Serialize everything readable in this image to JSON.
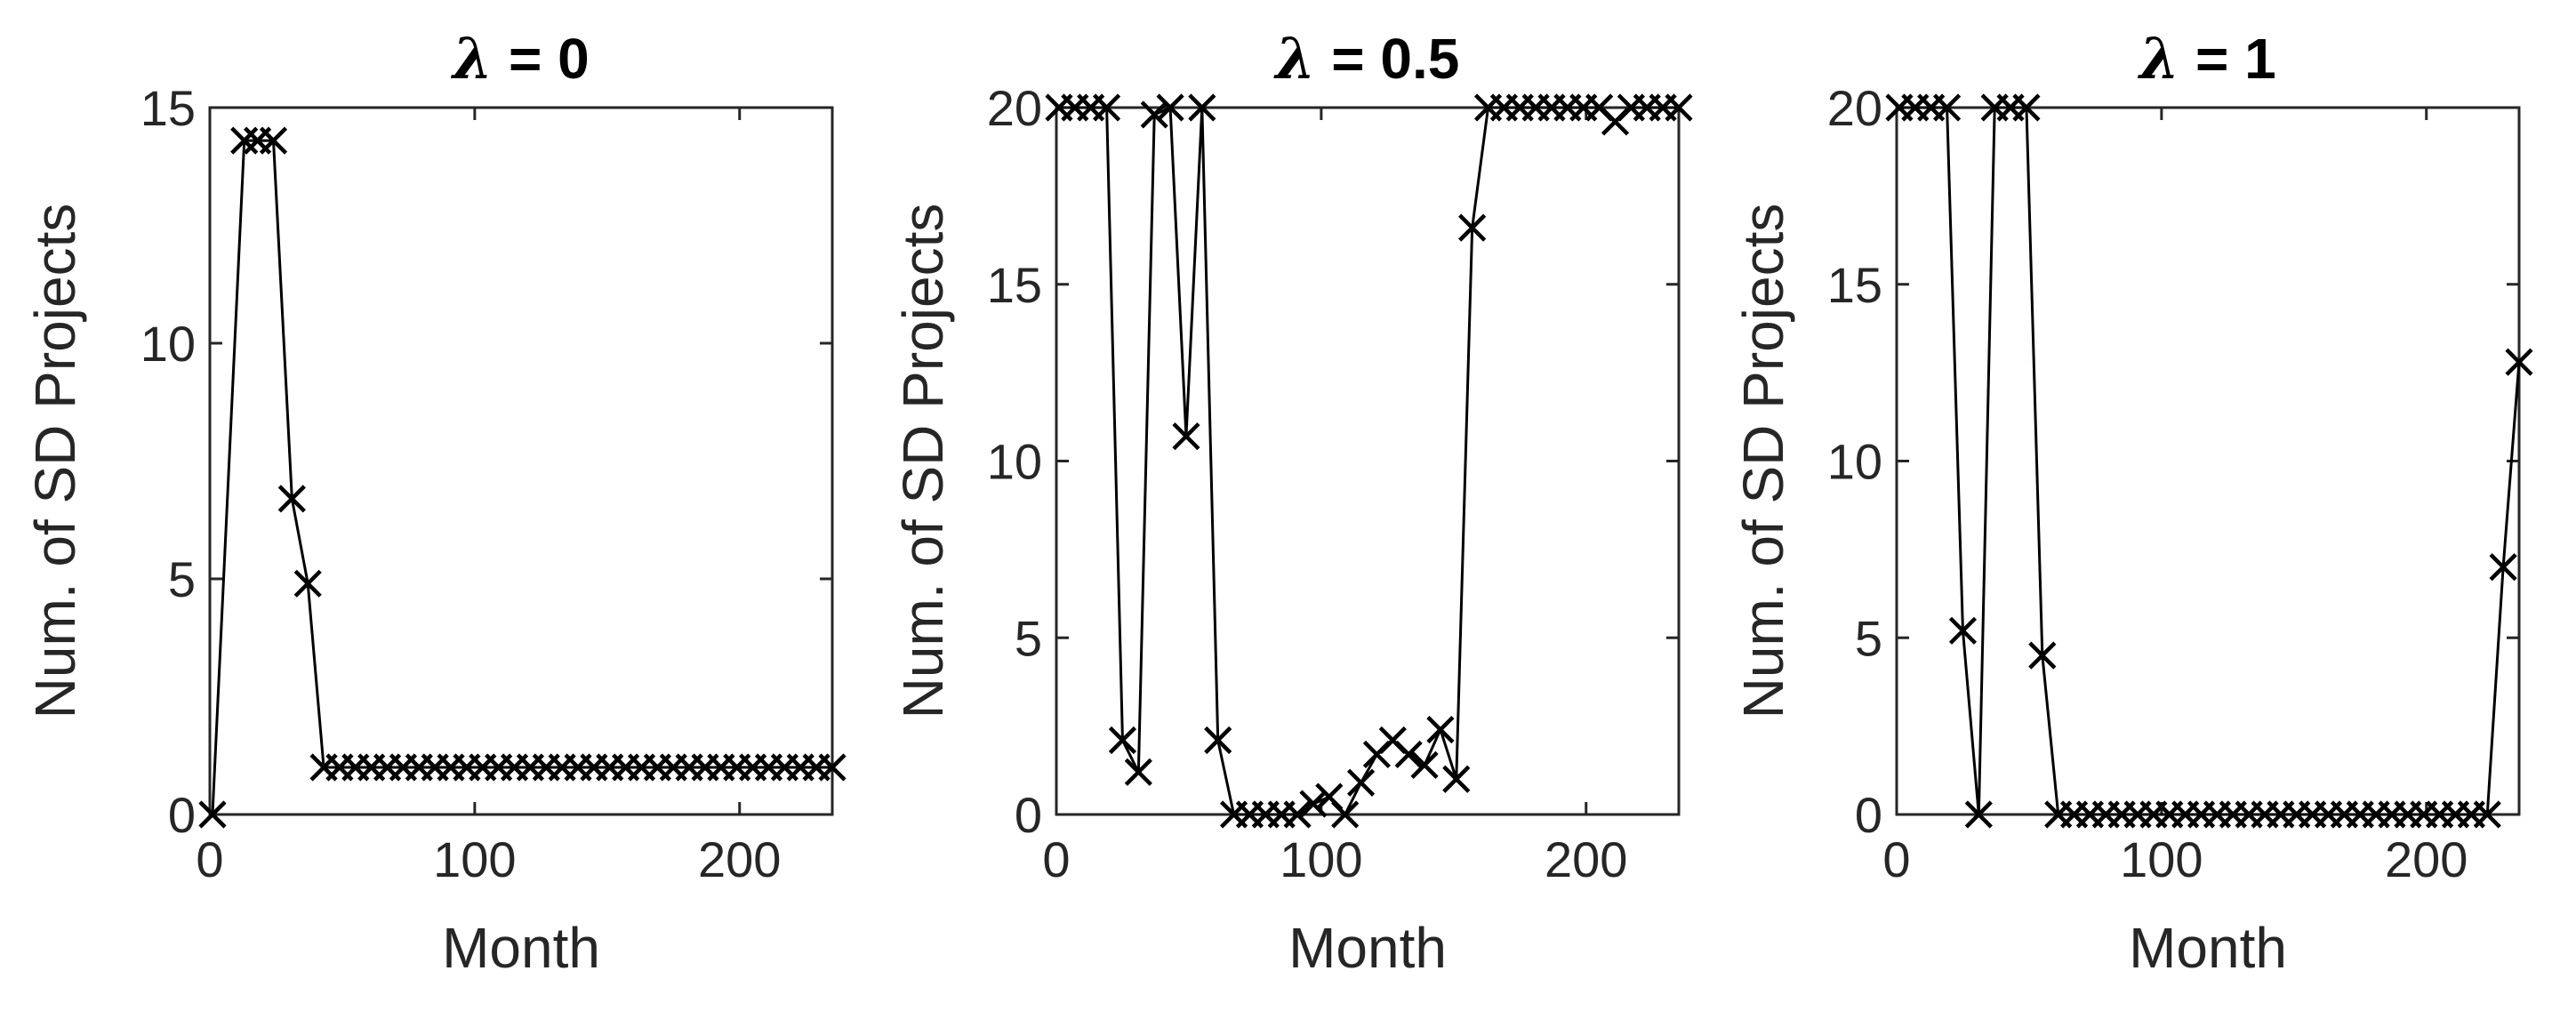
{
  "chart_data": [
    {
      "type": "line",
      "title": "λ = 0",
      "title_symbol": "λ",
      "title_rest": " = 0",
      "xlabel": "Month",
      "ylabel": "Num. of SD Projects",
      "xlim": [
        0,
        235
      ],
      "ylim": [
        0,
        15
      ],
      "xticks": [
        0,
        100,
        200
      ],
      "xtick_labels": [
        "0",
        "100",
        "200"
      ],
      "yticks": [
        0,
        5,
        10,
        15
      ],
      "ytick_labels": [
        "0",
        "5",
        "10",
        "15"
      ],
      "marker": "x",
      "series": [
        {
          "name": "SD Projects",
          "x": [
            1,
            13,
            18,
            24,
            31,
            37,
            43,
            49,
            55,
            61,
            67,
            73,
            79,
            85,
            91,
            97,
            103,
            109,
            115,
            121,
            127,
            133,
            139,
            145,
            151,
            157,
            163,
            169,
            175,
            181,
            187,
            193,
            199,
            205,
            211,
            217,
            223,
            229,
            235
          ],
          "values": [
            0,
            14.3,
            14.3,
            14.3,
            6.7,
            4.9,
            1,
            1,
            1,
            1,
            1,
            1,
            1,
            1,
            1,
            1,
            1,
            1,
            1,
            1,
            1,
            1,
            1,
            1,
            1,
            1,
            1,
            1,
            1,
            1,
            1,
            1,
            1,
            1,
            1,
            1,
            1,
            1,
            1
          ]
        }
      ]
    },
    {
      "type": "line",
      "title": "λ = 0.5",
      "title_symbol": "λ",
      "title_rest": " = 0.5",
      "xlabel": "Month",
      "ylabel": "Num. of SD Projects",
      "xlim": [
        0,
        235
      ],
      "ylim": [
        0,
        20
      ],
      "xticks": [
        0,
        100,
        200
      ],
      "xtick_labels": [
        "0",
        "100",
        "200"
      ],
      "yticks": [
        0,
        5,
        10,
        15,
        20
      ],
      "ytick_labels": [
        "0",
        "5",
        "10",
        "15",
        "20"
      ],
      "marker": "x",
      "series": [
        {
          "name": "SD Projects",
          "x": [
            1,
            7,
            13,
            19,
            25,
            31,
            37,
            43,
            49,
            55,
            61,
            67,
            73,
            79,
            85,
            91,
            97,
            103,
            109,
            115,
            121,
            127,
            133,
            139,
            145,
            151,
            157,
            163,
            169,
            175,
            181,
            187,
            193,
            199,
            205,
            211,
            217,
            223,
            229,
            235
          ],
          "values": [
            20,
            20,
            20,
            20,
            2.1,
            1.2,
            19.8,
            20,
            10.7,
            20,
            2.1,
            0,
            0,
            0,
            0,
            0,
            0.3,
            0.5,
            0,
            0.9,
            1.7,
            2.1,
            1.7,
            1.4,
            2.4,
            1,
            16.6,
            20,
            20,
            20,
            20,
            20,
            20,
            20,
            20,
            19.6,
            20,
            20,
            20,
            20
          ]
        }
      ]
    },
    {
      "type": "line",
      "title": "λ = 1",
      "title_symbol": "λ",
      "title_rest": " = 1",
      "xlabel": "Month",
      "ylabel": "Num. of SD Projects",
      "xlim": [
        0,
        235
      ],
      "ylim": [
        0,
        20
      ],
      "xticks": [
        0,
        100,
        200
      ],
      "xtick_labels": [
        "0",
        "100",
        "200"
      ],
      "yticks": [
        0,
        5,
        10,
        15,
        20
      ],
      "ytick_labels": [
        "0",
        "5",
        "10",
        "15",
        "20"
      ],
      "marker": "x",
      "series": [
        {
          "name": "SD Projects",
          "x": [
            1,
            7,
            13,
            19,
            25,
            31,
            37,
            43,
            49,
            55,
            61,
            67,
            73,
            79,
            85,
            91,
            97,
            103,
            109,
            115,
            121,
            127,
            133,
            139,
            145,
            151,
            157,
            163,
            169,
            175,
            181,
            187,
            193,
            199,
            205,
            211,
            217,
            223,
            229,
            235
          ],
          "values": [
            20,
            20,
            20,
            20,
            5.2,
            0,
            20,
            20,
            20,
            4.5,
            0,
            0,
            0,
            0,
            0,
            0,
            0,
            0,
            0,
            0,
            0,
            0,
            0,
            0,
            0,
            0,
            0,
            0,
            0,
            0,
            0,
            0,
            0,
            0,
            0,
            0,
            0,
            0,
            7,
            12.8
          ]
        }
      ]
    }
  ],
  "colors": {
    "line": "#000000",
    "axis": "#262626",
    "background": "#ffffff"
  }
}
